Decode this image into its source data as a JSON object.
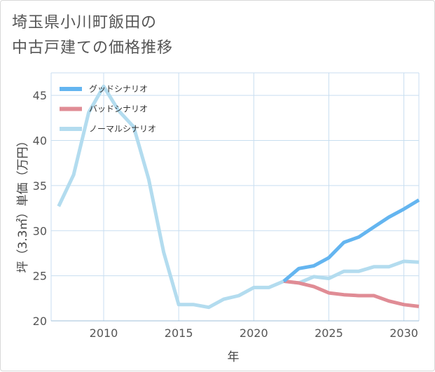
{
  "title_line1": "埼玉県小川町飯田の",
  "title_line2": "中古戸建ての価格推移",
  "chart_data": {
    "type": "line",
    "xlabel": "年",
    "ylabel": "坪（3.3㎡）単価（万円）",
    "xlim": [
      2006.5,
      2031
    ],
    "ylim": [
      20,
      47.5
    ],
    "xticks": [
      2010,
      2015,
      2020,
      2025,
      2030
    ],
    "yticks": [
      20,
      25,
      30,
      35,
      40,
      45
    ],
    "grid": true,
    "legend_position": "top-left",
    "series": [
      {
        "name": "グッドシナリオ",
        "color": "#64b5f0",
        "x": [
          2022,
          2023,
          2024,
          2025,
          2026,
          2027,
          2028,
          2029,
          2030,
          2031
        ],
        "y": [
          24.4,
          25.8,
          26.1,
          27.0,
          28.7,
          29.3,
          30.4,
          31.5,
          32.4,
          33.4
        ]
      },
      {
        "name": "バッドシナリオ",
        "color": "#e08c95",
        "x": [
          2022,
          2023,
          2024,
          2025,
          2026,
          2027,
          2028,
          2029,
          2030,
          2031
        ],
        "y": [
          24.4,
          24.2,
          23.8,
          23.1,
          22.9,
          22.8,
          22.8,
          22.2,
          21.8,
          21.6
        ]
      },
      {
        "name": "ノーマルシナリオ",
        "color": "#b3dcef",
        "x": [
          2007,
          2008,
          2009,
          2010,
          2011,
          2012,
          2013,
          2014,
          2015,
          2016,
          2017,
          2018,
          2019,
          2020,
          2021,
          2022,
          2023,
          2024,
          2025,
          2026,
          2027,
          2028,
          2029,
          2030,
          2031
        ],
        "y": [
          32.7,
          36.2,
          43.1,
          46.0,
          43.3,
          41.5,
          35.7,
          27.6,
          21.8,
          21.8,
          21.5,
          22.4,
          22.8,
          23.7,
          23.7,
          24.4,
          24.2,
          24.9,
          24.7,
          25.5,
          25.5,
          26.0,
          26.0,
          26.6,
          26.5
        ]
      }
    ]
  }
}
